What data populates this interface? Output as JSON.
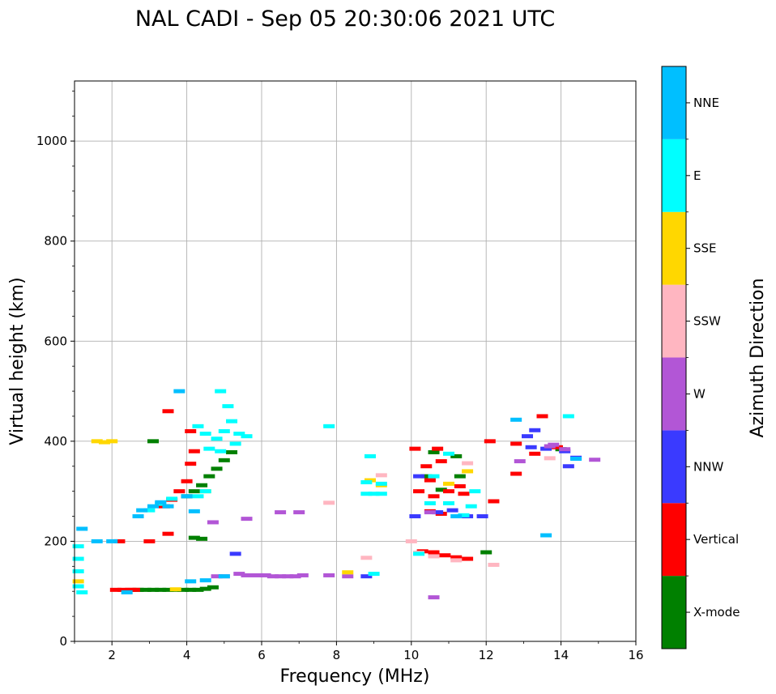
{
  "chart_data": {
    "type": "scatter",
    "title": "NAL CADI - Sep 05 20:30:06 2021 UTC",
    "xlabel": "Frequency (MHz)",
    "ylabel": "Virtual height (km)",
    "xlim": [
      1,
      16
    ],
    "ylim": [
      0,
      1120
    ],
    "xticks": [
      2,
      4,
      6,
      8,
      10,
      12,
      14,
      16
    ],
    "yticks": [
      0,
      200,
      400,
      600,
      800,
      1000
    ],
    "grid": true,
    "colorbar": {
      "label": "Azimuth Direction",
      "categories": [
        {
          "name": "X-mode",
          "color": "#008000"
        },
        {
          "name": "Vertical",
          "color": "#ff0000"
        },
        {
          "name": "NNW",
          "color": "#3a3aff"
        },
        {
          "name": "W",
          "color": "#b256d6"
        },
        {
          "name": "SSW",
          "color": "#ffb6c1"
        },
        {
          "name": "SSE",
          "color": "#ffd700"
        },
        {
          "name": "E",
          "color": "#00ffff"
        },
        {
          "name": "NNE",
          "color": "#00bfff"
        }
      ]
    },
    "series": [
      {
        "name": "X-mode",
        "points": [
          [
            2.7,
            103
          ],
          [
            2.9,
            103
          ],
          [
            3.1,
            103
          ],
          [
            3.3,
            103
          ],
          [
            3.5,
            103
          ],
          [
            3.7,
            103
          ],
          [
            3.9,
            103
          ],
          [
            4.1,
            103
          ],
          [
            4.3,
            103
          ],
          [
            4.5,
            105
          ],
          [
            4.7,
            108
          ],
          [
            4.0,
            290
          ],
          [
            4.2,
            300
          ],
          [
            4.4,
            312
          ],
          [
            4.6,
            330
          ],
          [
            4.8,
            345
          ],
          [
            5.0,
            362
          ],
          [
            5.2,
            378
          ],
          [
            4.2,
            207
          ],
          [
            4.4,
            205
          ],
          [
            3.1,
            400
          ],
          [
            12.0,
            178
          ],
          [
            11.3,
            330
          ],
          [
            10.4,
            330
          ],
          [
            10.8,
            303
          ],
          [
            14.0,
            384
          ],
          [
            11.2,
            370
          ],
          [
            10.6,
            378
          ]
        ]
      },
      {
        "name": "Vertical",
        "points": [
          [
            2.1,
            103
          ],
          [
            2.3,
            103
          ],
          [
            2.5,
            103
          ],
          [
            2.6,
            103
          ],
          [
            2.2,
            200
          ],
          [
            3.0,
            200
          ],
          [
            3.5,
            215
          ],
          [
            3.4,
            270
          ],
          [
            3.6,
            283
          ],
          [
            3.8,
            300
          ],
          [
            4.0,
            320
          ],
          [
            4.1,
            355
          ],
          [
            4.2,
            380
          ],
          [
            4.1,
            420
          ],
          [
            3.5,
            460
          ],
          [
            10.3,
            180
          ],
          [
            10.6,
            178
          ],
          [
            10.9,
            172
          ],
          [
            11.2,
            168
          ],
          [
            11.5,
            165
          ],
          [
            10.5,
            260
          ],
          [
            10.8,
            255
          ],
          [
            10.2,
            300
          ],
          [
            10.6,
            290
          ],
          [
            11.0,
            300
          ],
          [
            11.4,
            295
          ],
          [
            10.4,
            350
          ],
          [
            10.8,
            360
          ],
          [
            11.3,
            310
          ],
          [
            10.1,
            385
          ],
          [
            10.7,
            385
          ],
          [
            12.1,
            400
          ],
          [
            12.8,
            335
          ],
          [
            12.8,
            395
          ],
          [
            13.3,
            375
          ],
          [
            13.5,
            450
          ],
          [
            13.9,
            388
          ],
          [
            10.5,
            322
          ],
          [
            12.2,
            280
          ]
        ]
      },
      {
        "name": "NNW",
        "points": [
          [
            10.1,
            250
          ],
          [
            10.7,
            258
          ],
          [
            11.1,
            262
          ],
          [
            11.5,
            250
          ],
          [
            11.9,
            250
          ],
          [
            13.1,
            410
          ],
          [
            13.2,
            388
          ],
          [
            13.6,
            385
          ],
          [
            14.1,
            380
          ],
          [
            14.2,
            350
          ],
          [
            14.4,
            367
          ],
          [
            13.3,
            422
          ],
          [
            8.8,
            130
          ],
          [
            5.3,
            175
          ],
          [
            10.2,
            330
          ]
        ]
      },
      {
        "name": "W",
        "points": [
          [
            5.6,
            132
          ],
          [
            5.9,
            132
          ],
          [
            6.1,
            132
          ],
          [
            6.3,
            130
          ],
          [
            6.5,
            130
          ],
          [
            6.7,
            130
          ],
          [
            6.9,
            130
          ],
          [
            7.1,
            132
          ],
          [
            7.8,
            132
          ],
          [
            8.3,
            130
          ],
          [
            4.8,
            130
          ],
          [
            5.0,
            130
          ],
          [
            5.4,
            135
          ],
          [
            5.6,
            245
          ],
          [
            6.5,
            258
          ],
          [
            7.0,
            258
          ],
          [
            14.9,
            363
          ],
          [
            12.9,
            360
          ],
          [
            13.8,
            393
          ],
          [
            4.7,
            238
          ],
          [
            10.6,
            88
          ],
          [
            10.5,
            258
          ],
          [
            13.7,
            390
          ],
          [
            14.1,
            384
          ]
        ]
      },
      {
        "name": "SSW",
        "points": [
          [
            8.8,
            167
          ],
          [
            12.2,
            153
          ],
          [
            13.7,
            366
          ],
          [
            7.8,
            277
          ],
          [
            10.2,
            177
          ],
          [
            11.2,
            162
          ],
          [
            10.6,
            170
          ],
          [
            11.5,
            356
          ],
          [
            9.2,
            332
          ],
          [
            10.0,
            200
          ]
        ]
      },
      {
        "name": "SSE",
        "points": [
          [
            1.6,
            400
          ],
          [
            1.8,
            398
          ],
          [
            2.0,
            400
          ],
          [
            8.3,
            138
          ],
          [
            8.9,
            322
          ],
          [
            9.2,
            312
          ],
          [
            11.5,
            340
          ],
          [
            4.5,
            300
          ],
          [
            1.1,
            120
          ],
          [
            3.7,
            104
          ],
          [
            11.0,
            315
          ]
        ]
      },
      {
        "name": "E",
        "points": [
          [
            4.6,
            385
          ],
          [
            4.8,
            405
          ],
          [
            5.0,
            420
          ],
          [
            5.2,
            440
          ],
          [
            5.4,
            415
          ],
          [
            5.6,
            410
          ],
          [
            5.3,
            395
          ],
          [
            5.1,
            470
          ],
          [
            4.9,
            380
          ],
          [
            4.5,
            415
          ],
          [
            4.3,
            430
          ],
          [
            4.5,
            300
          ],
          [
            4.3,
            290
          ],
          [
            3.0,
            262
          ],
          [
            3.3,
            275
          ],
          [
            3.6,
            285
          ],
          [
            8.8,
            295
          ],
          [
            9.0,
            295
          ],
          [
            9.2,
            295
          ],
          [
            8.9,
            370
          ],
          [
            9.2,
            315
          ],
          [
            8.8,
            318
          ],
          [
            9.0,
            135
          ],
          [
            7.8,
            430
          ],
          [
            10.5,
            276
          ],
          [
            10.6,
            330
          ],
          [
            11.0,
            276
          ],
          [
            11.4,
            252
          ],
          [
            11.7,
            300
          ],
          [
            11.6,
            270
          ],
          [
            14.2,
            450
          ],
          [
            1.1,
            190
          ],
          [
            1.1,
            165
          ],
          [
            1.1,
            140
          ],
          [
            1.1,
            110
          ],
          [
            1.2,
            98
          ],
          [
            11.0,
            375
          ],
          [
            10.2,
            175
          ],
          [
            4.9,
            500
          ]
        ]
      },
      {
        "name": "NNE",
        "points": [
          [
            1.6,
            200
          ],
          [
            2.0,
            200
          ],
          [
            2.7,
            250
          ],
          [
            2.8,
            262
          ],
          [
            3.1,
            270
          ],
          [
            3.3,
            278
          ],
          [
            12.8,
            443
          ],
          [
            13.6,
            212
          ],
          [
            14.4,
            365
          ],
          [
            3.8,
            500
          ],
          [
            4.0,
            290
          ],
          [
            4.2,
            260
          ],
          [
            5.0,
            130
          ],
          [
            4.1,
            120
          ],
          [
            4.5,
            122
          ],
          [
            11.2,
            250
          ],
          [
            3.5,
            270
          ],
          [
            2.4,
            98
          ],
          [
            1.2,
            225
          ]
        ]
      }
    ]
  }
}
